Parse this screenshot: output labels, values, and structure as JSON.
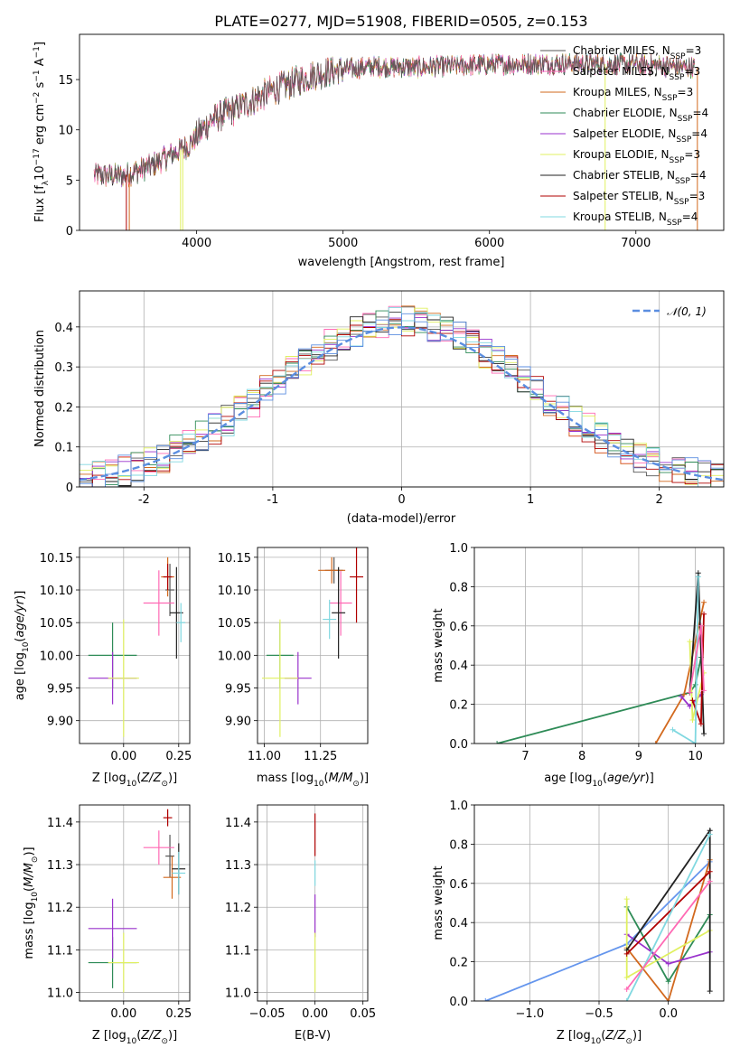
{
  "title": "PLATE=0277, MJD=51908, FIBERID=0505, z=0.153",
  "colors": {
    "chabrier_miles": "#555555",
    "salpeter_miles": "#ff69b4",
    "kroupa_miles": "#d2691e",
    "chabrier_elodie": "#2e8b57",
    "salpeter_elodie": "#9932cc",
    "kroupa_elodie": "#e0f060",
    "chabrier_stelib": "#222222",
    "salpeter_stelib": "#b00000",
    "kroupa_stelib": "#80d8e0",
    "gauss": "#5b8ee0",
    "cornflower": "#6495ed"
  },
  "chart_data": [
    {
      "id": "spectrum",
      "type": "line",
      "xlabel": "wavelength [Angstrom, rest frame]",
      "ylabel": "Flux [f_λ 10^-17 erg cm^-2 s^-1 A^-1]",
      "xlim": [
        3200,
        7600
      ],
      "ylim": [
        0,
        19.5
      ],
      "xticks": [
        4000,
        5000,
        6000,
        7000
      ],
      "yticks": [
        0,
        5,
        10,
        15
      ],
      "continuum": {
        "x": [
          3300,
          3500,
          3700,
          3950,
          4100,
          4300,
          4500,
          4800,
          5000,
          5200,
          5500,
          6000,
          6500,
          7000,
          7400
        ],
        "y": [
          5.5,
          5.4,
          6.5,
          8.5,
          11.0,
          12.3,
          13.8,
          15.5,
          16.0,
          16.3,
          16.2,
          16.5,
          16.6,
          16.5,
          16.2
        ]
      },
      "legend": [
        {
          "key": "chabrier_miles",
          "label": "Chabrier MILES, N",
          "sub": "SSP",
          "tail": "=3"
        },
        {
          "key": "salpeter_miles",
          "label": "Salpeter MILES, N",
          "sub": "SSP",
          "tail": "=3"
        },
        {
          "key": "kroupa_miles",
          "label": "Kroupa MILES, N",
          "sub": "SSP",
          "tail": "=3"
        },
        {
          "key": "chabrier_elodie",
          "label": "Chabrier ELODIE, N",
          "sub": "SSP",
          "tail": "=4"
        },
        {
          "key": "salpeter_elodie",
          "label": "Salpeter ELODIE, N",
          "sub": "SSP",
          "tail": "=4"
        },
        {
          "key": "kroupa_elodie",
          "label": "Kroupa ELODIE, N",
          "sub": "SSP",
          "tail": "=3"
        },
        {
          "key": "chabrier_stelib",
          "label": "Chabrier STELIB, N",
          "sub": "SSP",
          "tail": "=4"
        },
        {
          "key": "salpeter_stelib",
          "label": "Salpeter STELIB, N",
          "sub": "SSP",
          "tail": "=3"
        },
        {
          "key": "kroupa_stelib",
          "label": "Kroupa STELIB, N",
          "sub": "SSP",
          "tail": "=4"
        }
      ]
    },
    {
      "id": "residuals",
      "type": "histogram",
      "xlabel": "(data-model)/error",
      "ylabel": "Normed distribution",
      "xlim": [
        -2.5,
        2.5
      ],
      "ylim": [
        0,
        0.49
      ],
      "xticks": [
        -2,
        -1,
        0,
        1,
        2
      ],
      "yticks": [
        0.0,
        0.1,
        0.2,
        0.3,
        0.4
      ],
      "legend_label": "𝒩(0, 1)",
      "bin_width": 0.1,
      "grid": true
    },
    {
      "id": "age_vs_Z",
      "type": "scatter",
      "xlabel": "Z [log10(Z/Z⊙)]",
      "ylabel": "age [log10(age/yr)]",
      "xlim": [
        -0.2,
        0.3
      ],
      "ylim": [
        9.865,
        10.165
      ],
      "xticks": [
        0.0,
        0.25
      ],
      "xtick_labels": [
        "0.00",
        "0.25"
      ],
      "yticks": [
        9.9,
        9.95,
        10.0,
        10.05,
        10.1,
        10.15
      ],
      "ytick_labels": [
        "9.90",
        "9.95",
        "10.00",
        "10.05",
        "10.10",
        "10.15"
      ],
      "points": [
        {
          "key": "chabrier_miles",
          "x": 0.21,
          "y": 10.1,
          "ex": 0.02,
          "ey": 0.04
        },
        {
          "key": "salpeter_miles",
          "x": 0.16,
          "y": 10.08,
          "ex": 0.07,
          "ey": 0.05
        },
        {
          "key": "kroupa_miles",
          "x": 0.2,
          "y": 10.12,
          "ex": 0.03,
          "ey": 0.03
        },
        {
          "key": "chabrier_elodie",
          "x": -0.05,
          "y": 10.0,
          "ex": 0.11,
          "ey": 0.05
        },
        {
          "key": "salpeter_elodie",
          "x": -0.05,
          "y": 9.965,
          "ex": 0.11,
          "ey": 0.04
        },
        {
          "key": "kroupa_elodie",
          "x": 0.0,
          "y": 9.965,
          "ex": 0.07,
          "ey": 0.09
        },
        {
          "key": "chabrier_stelib",
          "x": 0.24,
          "y": 10.065,
          "ex": 0.03,
          "ey": 0.07
        },
        {
          "key": "salpeter_stelib",
          "x": 0.2,
          "y": 10.12,
          "ex": 0.02,
          "ey": 0.02
        },
        {
          "key": "kroupa_stelib",
          "x": 0.26,
          "y": 10.05,
          "ex": 0.02,
          "ey": 0.03
        }
      ]
    },
    {
      "id": "age_vs_mass",
      "type": "scatter",
      "xlabel": "mass [log10(M/M⊙)]",
      "xlim": [
        10.97,
        11.46
      ],
      "ylim": [
        9.865,
        10.165
      ],
      "xticks": [
        11.0,
        11.25
      ],
      "xtick_labels": [
        "11.00",
        "11.25"
      ],
      "yticks": [
        9.9,
        9.95,
        10.0,
        10.05,
        10.1,
        10.15
      ],
      "ytick_labels": [
        "9.90",
        "9.95",
        "10.00",
        "10.05",
        "10.10",
        "10.15"
      ],
      "points": [
        {
          "key": "chabrier_miles",
          "x": 11.31,
          "y": 10.13,
          "ex": 0.04,
          "ey": 0.02
        },
        {
          "key": "salpeter_miles",
          "x": 11.34,
          "y": 10.08,
          "ex": 0.05,
          "ey": 0.05
        },
        {
          "key": "kroupa_miles",
          "x": 11.3,
          "y": 10.13,
          "ex": 0.06,
          "ey": 0.02
        },
        {
          "key": "chabrier_elodie",
          "x": 11.07,
          "y": 10.0,
          "ex": 0.06,
          "ey": 0.05
        },
        {
          "key": "salpeter_elodie",
          "x": 11.15,
          "y": 9.965,
          "ex": 0.06,
          "ey": 0.04
        },
        {
          "key": "kroupa_elodie",
          "x": 11.07,
          "y": 9.965,
          "ex": 0.08,
          "ey": 0.09
        },
        {
          "key": "chabrier_stelib",
          "x": 11.33,
          "y": 10.065,
          "ex": 0.03,
          "ey": 0.07
        },
        {
          "key": "salpeter_stelib",
          "x": 11.41,
          "y": 10.12,
          "ex": 0.03,
          "ey": 0.07
        },
        {
          "key": "kroupa_stelib",
          "x": 11.29,
          "y": 10.055,
          "ex": 0.03,
          "ey": 0.03
        }
      ]
    },
    {
      "id": "mass_vs_Z",
      "type": "scatter",
      "xlabel": "Z [log10(Z/Z⊙)]",
      "ylabel": "mass [log10(M/M⊙)]",
      "xlim": [
        -0.2,
        0.3
      ],
      "ylim": [
        10.98,
        11.44
      ],
      "xticks": [
        0.0,
        0.25
      ],
      "xtick_labels": [
        "0.00",
        "0.25"
      ],
      "yticks": [
        11.0,
        11.1,
        11.2,
        11.3,
        11.4
      ],
      "ytick_labels": [
        "11.0",
        "11.1",
        "11.2",
        "11.3",
        "11.4"
      ],
      "points": [
        {
          "key": "chabrier_miles",
          "x": 0.21,
          "y": 11.32,
          "ex": 0.02,
          "ey": 0.05
        },
        {
          "key": "salpeter_miles",
          "x": 0.16,
          "y": 11.34,
          "ex": 0.07,
          "ey": 0.04
        },
        {
          "key": "kroupa_miles",
          "x": 0.22,
          "y": 11.27,
          "ex": 0.04,
          "ey": 0.05
        },
        {
          "key": "chabrier_elodie",
          "x": -0.05,
          "y": 11.07,
          "ex": 0.11,
          "ey": 0.06
        },
        {
          "key": "salpeter_elodie",
          "x": -0.05,
          "y": 11.15,
          "ex": 0.11,
          "ey": 0.07
        },
        {
          "key": "kroupa_elodie",
          "x": 0.0,
          "y": 11.07,
          "ex": 0.07,
          "ey": 0.07
        },
        {
          "key": "chabrier_stelib",
          "x": 0.25,
          "y": 11.29,
          "ex": 0.03,
          "ey": 0.06
        },
        {
          "key": "salpeter_stelib",
          "x": 0.2,
          "y": 11.41,
          "ex": 0.02,
          "ey": 0.02
        },
        {
          "key": "kroupa_stelib",
          "x": 0.25,
          "y": 11.28,
          "ex": 0.03,
          "ey": 0.05
        }
      ]
    },
    {
      "id": "mass_vs_ebv",
      "type": "scatter",
      "xlabel": "E(B-V)",
      "xlim": [
        -0.06,
        0.055
      ],
      "ylim": [
        10.98,
        11.44
      ],
      "xticks": [
        -0.05,
        0.0,
        0.05
      ],
      "xtick_labels": [
        "−0.05",
        "0.00",
        "0.05"
      ],
      "yticks": [
        11.0,
        11.1,
        11.2,
        11.3,
        11.4
      ],
      "ytick_labels": [
        "11.0",
        "11.1",
        "11.2",
        "11.3",
        "11.4"
      ],
      "points": [
        {
          "key": "salpeter_stelib",
          "x": 0.0,
          "y": 11.37,
          "ex": 0,
          "ey": 0.05
        },
        {
          "key": "salpeter_elodie",
          "x": 0.0,
          "y": 11.18,
          "ex": 0,
          "ey": 0.05
        },
        {
          "key": "kroupa_elodie",
          "x": 0.0,
          "y": 11.07,
          "ex": 0,
          "ey": 0.07
        },
        {
          "key": "kroupa_stelib",
          "x": 0.0,
          "y": 11.28,
          "ex": 0,
          "ey": 0.03
        }
      ]
    },
    {
      "id": "weight_vs_age",
      "type": "line",
      "xlabel": "age [log10(age/yr)]",
      "ylabel": "mass weight",
      "xlim": [
        6.1,
        10.5
      ],
      "ylim": [
        0,
        1
      ],
      "xticks": [
        7,
        8,
        9,
        10
      ],
      "yticks": [
        0.0,
        0.2,
        0.4,
        0.6,
        0.8,
        1.0
      ],
      "ytick_labels": [
        "0.0",
        "0.2",
        "0.4",
        "0.6",
        "0.8",
        "1.0"
      ],
      "series": [
        {
          "key": "chabrier_elodie",
          "x": [
            6.5,
            9.9,
            10.0,
            10.1
          ],
          "y": [
            0.0,
            0.26,
            0.3,
            0.44
          ]
        },
        {
          "key": "kroupa_miles",
          "x": [
            9.3,
            9.8,
            10.15
          ],
          "y": [
            0.0,
            0.25,
            0.72
          ]
        },
        {
          "key": "salpeter_elodie",
          "x": [
            9.75,
            9.9,
            10.1
          ],
          "y": [
            0.24,
            0.19,
            0.25
          ]
        },
        {
          "key": "kroupa_elodie",
          "x": [
            9.9,
            9.95,
            10.15
          ],
          "y": [
            0.52,
            0.12,
            0.36
          ]
        },
        {
          "key": "chabrier_stelib",
          "x": [
            9.9,
            10.05,
            10.15
          ],
          "y": [
            0.26,
            0.87,
            0.05
          ]
        },
        {
          "key": "salpeter_stelib",
          "x": [
            9.95,
            10.1,
            10.15
          ],
          "y": [
            0.22,
            0.1,
            0.66
          ]
        },
        {
          "key": "kroupa_stelib",
          "x": [
            9.6,
            10.0,
            10.05
          ],
          "y": [
            0.07,
            0.0,
            0.85
          ]
        },
        {
          "key": "salpeter_miles",
          "x": [
            9.9,
            10.1,
            10.15
          ],
          "y": [
            0.26,
            0.6,
            0.27
          ]
        }
      ]
    },
    {
      "id": "weight_vs_Z",
      "type": "line",
      "xlabel": "Z [log10(Z/Z⊙)]",
      "ylabel": "mass weight",
      "xlim": [
        -1.4,
        0.4
      ],
      "ylim": [
        0,
        1
      ],
      "xticks": [
        -1.0,
        -0.5,
        0.0
      ],
      "xtick_labels": [
        "−1.0",
        "−0.5",
        "0.0"
      ],
      "yticks": [
        0.0,
        0.2,
        0.4,
        0.6,
        0.8,
        1.0
      ],
      "ytick_labels": [
        "0.0",
        "0.2",
        "0.4",
        "0.6",
        "0.8",
        "1.0"
      ],
      "series": [
        {
          "key": "cornflower",
          "x": [
            -1.32,
            -0.3,
            0.3
          ],
          "y": [
            0.0,
            0.29,
            0.71
          ]
        },
        {
          "key": "chabrier_elodie",
          "x": [
            -0.3,
            0.0,
            0.3
          ],
          "y": [
            0.48,
            0.1,
            0.44
          ]
        },
        {
          "key": "kroupa_miles",
          "x": [
            -0.3,
            0.0,
            0.3
          ],
          "y": [
            0.27,
            0.0,
            0.72
          ]
        },
        {
          "key": "salpeter_elodie",
          "x": [
            -0.3,
            0.0,
            0.3
          ],
          "y": [
            0.34,
            0.19,
            0.25
          ]
        },
        {
          "key": "kroupa_elodie",
          "x": [
            -0.3,
            -0.3,
            0.3
          ],
          "y": [
            0.52,
            0.12,
            0.36
          ]
        },
        {
          "key": "chabrier_stelib",
          "x": [
            -0.3,
            0.3,
            0.3
          ],
          "y": [
            0.26,
            0.87,
            0.05
          ]
        },
        {
          "key": "salpeter_stelib",
          "x": [
            -0.3,
            0.3
          ],
          "y": [
            0.24,
            0.66
          ]
        },
        {
          "key": "kroupa_stelib",
          "x": [
            -0.3,
            0.3
          ],
          "y": [
            0.0,
            0.85
          ]
        },
        {
          "key": "salpeter_miles",
          "x": [
            -0.3,
            0.3
          ],
          "y": [
            0.06,
            0.61
          ]
        }
      ]
    }
  ]
}
